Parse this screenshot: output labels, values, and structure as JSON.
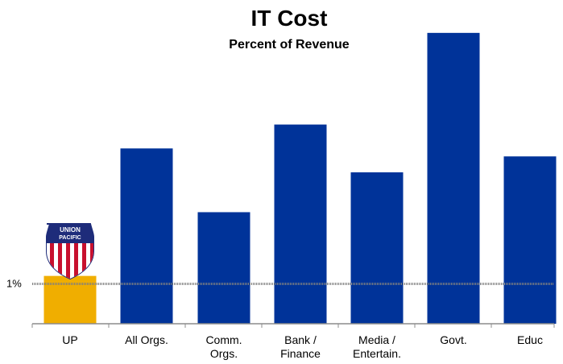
{
  "chart_data": {
    "type": "bar",
    "title": "IT Cost",
    "subtitle": "Percent of Revenue",
    "categories": [
      "UP",
      "All Orgs.",
      "Comm.\nOrgs.",
      "Bank /\nFinance",
      "Media /\nEntertain.",
      "Govt.",
      "Educ"
    ],
    "values": [
      1.2,
      4.4,
      2.8,
      5.0,
      3.8,
      7.3,
      4.2
    ],
    "colors": [
      "#F0AE00",
      "#003399",
      "#003399",
      "#003399",
      "#003399",
      "#003399",
      "#003399"
    ],
    "reference_line": {
      "value": 1,
      "label": "1%"
    },
    "ylim": [
      0,
      7.6
    ],
    "xlabel": "",
    "ylabel": "",
    "grid": false,
    "legend": "none",
    "logo": {
      "name": "union-pacific-logo",
      "text_top": "UNION",
      "text_bottom": "PACIFIC",
      "category": "UP"
    }
  }
}
